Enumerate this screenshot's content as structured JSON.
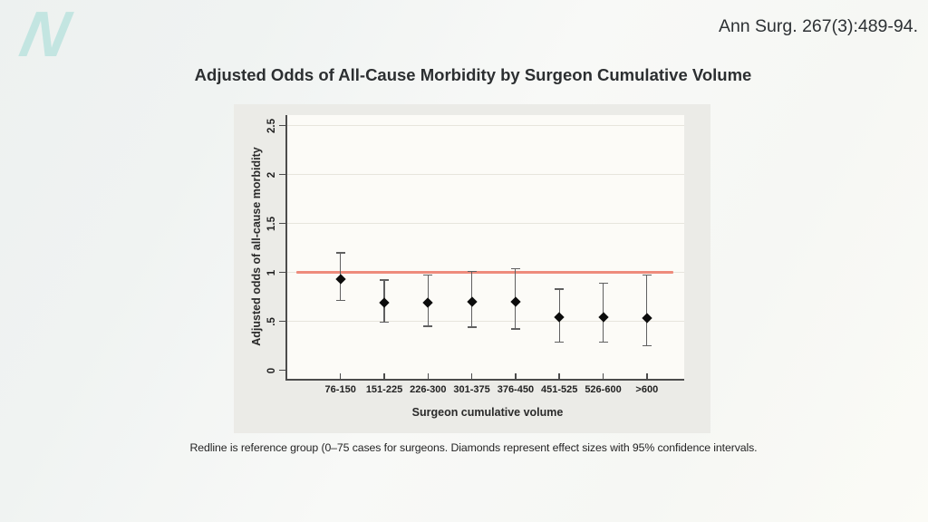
{
  "brand": {
    "logo_letter": "N"
  },
  "citation": "Ann Surg. 267(3):489-94.",
  "title": "Adjusted Odds of All-Cause Morbidity by Surgeon Cumulative Volume",
  "caption": "Redline is reference group (0–75 cases for surgeons. Diamonds represent effect sizes with 95% confidence intervals.",
  "chart_data": {
    "type": "scatter",
    "title": "Adjusted Odds of All-Cause Morbidity by Surgeon Cumulative Volume",
    "xlabel": "Surgeon cumulative volume",
    "ylabel": "Adjusted odds of all-cause morbidity",
    "categories": [
      "76-150",
      "151-225",
      "226-300",
      "301-375",
      "376-450",
      "451-525",
      "526-600",
      ">600"
    ],
    "series": [
      {
        "name": "Adjusted odds ratio (diamond, 95% CI)",
        "values": [
          0.93,
          0.69,
          0.69,
          0.7,
          0.7,
          0.54,
          0.54,
          0.53
        ],
        "ci_low": [
          0.71,
          0.49,
          0.45,
          0.44,
          0.42,
          0.29,
          0.29,
          0.25
        ],
        "ci_high": [
          1.2,
          0.92,
          0.97,
          1.01,
          1.04,
          0.83,
          0.89,
          0.97
        ]
      }
    ],
    "reference_line": {
      "value": 1,
      "color": "#ee8b7c",
      "meaning": "reference group (0–75 cases)"
    },
    "ylim": [
      -0.09,
      2.6
    ],
    "yticks": [
      0,
      0.5,
      1,
      1.5,
      2,
      2.5
    ],
    "ytick_labels": [
      "0",
      ".5",
      "1",
      "1.5",
      "2",
      "2.5"
    ],
    "grid": true,
    "legend": false,
    "marker": "diamond",
    "colors": {
      "marker": "#0c0c0c",
      "error_bar": "#606060",
      "axis": "#4c4c4c",
      "grid": "#e7e5dd",
      "panel_bg": "#ebebe7",
      "plot_bg": "#fcfbf7"
    }
  }
}
